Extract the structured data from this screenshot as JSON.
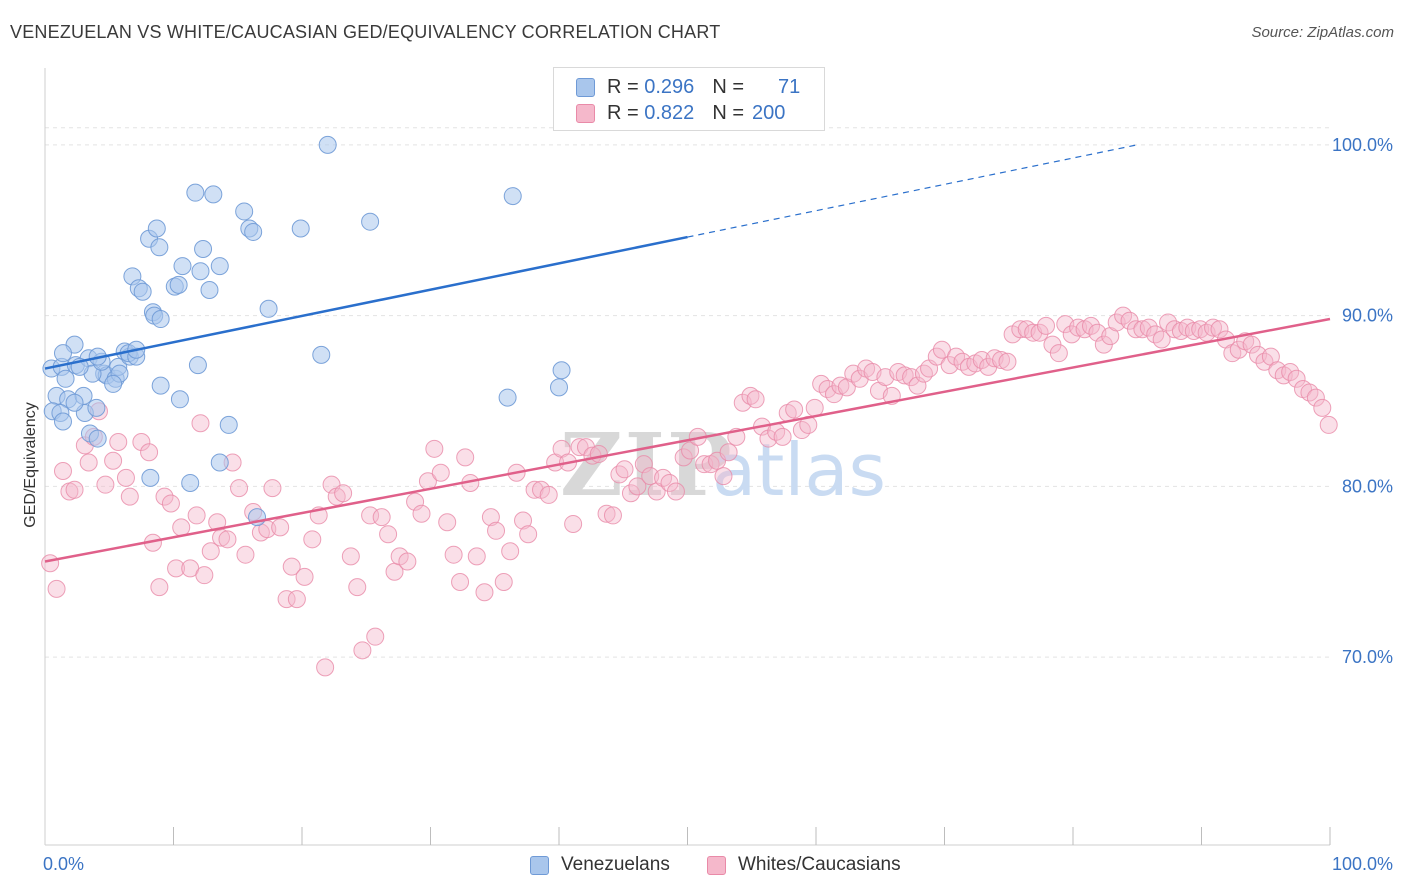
{
  "title": "VENEZUELAN VS WHITE/CAUCASIAN GED/EQUIVALENCY CORRELATION CHART",
  "source": "Source: ZipAtlas.com",
  "watermark": {
    "zip": "ZIP",
    "atlas": "atlas"
  },
  "colors": {
    "blue_fill": "#a9c6ec",
    "blue_stroke": "#6f9ad6",
    "blue_line": "#2a6fcc",
    "pink_fill": "#f5b8cb",
    "pink_stroke": "#e98aa8",
    "pink_line": "#e0608a",
    "tick_text": "#3b74c4",
    "grid": "#e3e3e3"
  },
  "legend": {
    "rows": [
      {
        "r_label": "R = ",
        "r_value": "0.296",
        "n_label": "N = ",
        "n_value": "71"
      },
      {
        "r_label": "R = ",
        "r_value": "0.822",
        "n_label": "N = ",
        "n_value": "200"
      }
    ]
  },
  "bottom_legend": [
    "Venezuelans",
    "Whites/Caucasians"
  ],
  "chart_data": {
    "type": "scatter",
    "title": "VENEZUELAN VS WHITE/CAUCASIAN GED/EQUIVALENCY CORRELATION CHART",
    "xlabel": "",
    "ylabel": "GED/Equivalency",
    "xlim": [
      0,
      100
    ],
    "ylim": [
      59.0,
      104.5
    ],
    "x_tick_labels": [
      "0.0%",
      "100.0%"
    ],
    "y_ticks": [
      70,
      80,
      90,
      100
    ],
    "y_tick_labels": [
      "70.0%",
      "80.0%",
      "90.0%",
      "100.0%"
    ],
    "grid": true,
    "legend_position": "top-center",
    "series": [
      {
        "name": "Venezuelans",
        "R": 0.296,
        "N": 71,
        "trend": {
          "x0": 0,
          "y0": 86.9,
          "x1": 50,
          "y1": 94.6,
          "dashed_to_x": 85,
          "dashed_to_y": 100.0
        },
        "points": [
          [
            0.5,
            86.9
          ],
          [
            1.3,
            87.0
          ],
          [
            0.9,
            85.3
          ],
          [
            0.6,
            84.4
          ],
          [
            1.6,
            86.3
          ],
          [
            1.8,
            85.1
          ],
          [
            2.4,
            87.1
          ],
          [
            3.0,
            85.3
          ],
          [
            3.1,
            84.3
          ],
          [
            1.2,
            84.3
          ],
          [
            1.4,
            83.8
          ],
          [
            2.3,
            84.9
          ],
          [
            4.0,
            84.6
          ],
          [
            3.5,
            83.1
          ],
          [
            4.1,
            82.8
          ],
          [
            4.6,
            86.6
          ],
          [
            4.8,
            86.5
          ],
          [
            5.5,
            86.3
          ],
          [
            5.7,
            87.0
          ],
          [
            5.8,
            86.6
          ],
          [
            5.3,
            86.0
          ],
          [
            6.2,
            87.9
          ],
          [
            6.6,
            87.6
          ],
          [
            6.5,
            87.8
          ],
          [
            7.1,
            87.6
          ],
          [
            7.1,
            88.0
          ],
          [
            3.4,
            87.5
          ],
          [
            3.7,
            86.6
          ],
          [
            4.4,
            87.3
          ],
          [
            4.1,
            87.6
          ],
          [
            2.3,
            88.3
          ],
          [
            1.4,
            87.8
          ],
          [
            2.7,
            87.0
          ],
          [
            6.8,
            92.3
          ],
          [
            7.3,
            91.6
          ],
          [
            7.6,
            91.4
          ],
          [
            8.1,
            94.5
          ],
          [
            8.4,
            90.2
          ],
          [
            8.5,
            90.0
          ],
          [
            8.7,
            95.1
          ],
          [
            8.9,
            94.0
          ],
          [
            9.0,
            89.8
          ],
          [
            10.1,
            91.7
          ],
          [
            10.4,
            91.8
          ],
          [
            10.7,
            92.9
          ],
          [
            11.7,
            97.2
          ],
          [
            12.1,
            92.6
          ],
          [
            12.3,
            93.9
          ],
          [
            12.8,
            91.5
          ],
          [
            13.1,
            97.1
          ],
          [
            13.6,
            92.9
          ],
          [
            15.5,
            96.1
          ],
          [
            15.9,
            95.1
          ],
          [
            16.2,
            94.9
          ],
          [
            17.4,
            90.4
          ],
          [
            19.9,
            95.1
          ],
          [
            21.5,
            87.7
          ],
          [
            22.0,
            100.0
          ],
          [
            25.3,
            95.5
          ],
          [
            36.4,
            97.0
          ],
          [
            11.9,
            87.1
          ],
          [
            9.0,
            85.9
          ],
          [
            10.5,
            85.1
          ],
          [
            13.6,
            81.4
          ],
          [
            14.3,
            83.6
          ],
          [
            8.2,
            80.5
          ],
          [
            11.3,
            80.2
          ],
          [
            16.5,
            78.2
          ],
          [
            36.0,
            85.2
          ],
          [
            40.2,
            86.8
          ],
          [
            40.0,
            85.8
          ]
        ]
      },
      {
        "name": "Whites/Caucasians",
        "R": 0.822,
        "N": 200,
        "trend": {
          "x0": 0,
          "y0": 75.6,
          "x1": 100,
          "y1": 89.8
        },
        "points": [
          [
            0.4,
            75.5
          ],
          [
            0.9,
            74.0
          ],
          [
            1.4,
            80.9
          ],
          [
            1.9,
            79.7
          ],
          [
            2.3,
            79.8
          ],
          [
            3.1,
            82.4
          ],
          [
            3.4,
            81.4
          ],
          [
            3.8,
            82.9
          ],
          [
            4.2,
            84.4
          ],
          [
            4.7,
            80.1
          ],
          [
            5.3,
            81.5
          ],
          [
            5.7,
            82.6
          ],
          [
            6.3,
            80.5
          ],
          [
            6.6,
            79.4
          ],
          [
            7.5,
            82.6
          ],
          [
            8.1,
            82.0
          ],
          [
            8.4,
            76.7
          ],
          [
            8.9,
            74.1
          ],
          [
            9.3,
            79.4
          ],
          [
            9.8,
            79.0
          ],
          [
            10.2,
            75.2
          ],
          [
            10.6,
            77.6
          ],
          [
            11.3,
            75.2
          ],
          [
            11.8,
            78.3
          ],
          [
            12.1,
            83.7
          ],
          [
            12.4,
            74.8
          ],
          [
            12.9,
            76.2
          ],
          [
            13.4,
            77.9
          ],
          [
            13.7,
            77.0
          ],
          [
            14.2,
            76.9
          ],
          [
            14.6,
            81.4
          ],
          [
            15.1,
            79.9
          ],
          [
            15.6,
            76.0
          ],
          [
            16.2,
            78.5
          ],
          [
            16.8,
            77.3
          ],
          [
            17.3,
            77.5
          ],
          [
            17.7,
            79.9
          ],
          [
            18.3,
            77.6
          ],
          [
            18.8,
            73.4
          ],
          [
            19.2,
            75.3
          ],
          [
            19.6,
            73.4
          ],
          [
            20.2,
            74.7
          ],
          [
            20.8,
            76.9
          ],
          [
            21.3,
            78.3
          ],
          [
            21.8,
            69.4
          ],
          [
            22.3,
            80.1
          ],
          [
            22.7,
            79.4
          ],
          [
            23.2,
            79.6
          ],
          [
            23.8,
            75.9
          ],
          [
            24.3,
            74.1
          ],
          [
            24.7,
            70.4
          ],
          [
            25.3,
            78.3
          ],
          [
            25.7,
            71.2
          ],
          [
            26.2,
            78.2
          ],
          [
            26.7,
            77.2
          ],
          [
            27.2,
            75.0
          ],
          [
            27.6,
            75.9
          ],
          [
            28.2,
            75.6
          ],
          [
            28.8,
            79.1
          ],
          [
            29.3,
            78.4
          ],
          [
            29.8,
            80.3
          ],
          [
            30.3,
            82.2
          ],
          [
            30.8,
            80.8
          ],
          [
            31.3,
            77.9
          ],
          [
            31.8,
            76.0
          ],
          [
            32.3,
            74.4
          ],
          [
            32.7,
            81.7
          ],
          [
            33.1,
            80.2
          ],
          [
            33.6,
            75.9
          ],
          [
            34.2,
            73.8
          ],
          [
            34.7,
            78.2
          ],
          [
            35.1,
            77.4
          ],
          [
            35.7,
            74.4
          ],
          [
            36.2,
            76.2
          ],
          [
            36.7,
            80.8
          ],
          [
            37.2,
            78.0
          ],
          [
            37.6,
            77.2
          ],
          [
            38.1,
            79.8
          ],
          [
            38.6,
            79.8
          ],
          [
            39.2,
            79.5
          ],
          [
            39.7,
            81.4
          ],
          [
            40.2,
            82.2
          ],
          [
            40.7,
            81.4
          ],
          [
            41.1,
            77.8
          ],
          [
            41.6,
            82.3
          ],
          [
            42.1,
            82.3
          ],
          [
            42.6,
            81.8
          ],
          [
            43.1,
            81.9
          ],
          [
            43.7,
            78.4
          ],
          [
            44.2,
            78.3
          ],
          [
            44.7,
            80.7
          ],
          [
            45.1,
            81.0
          ],
          [
            45.6,
            79.6
          ],
          [
            46.1,
            80.0
          ],
          [
            46.6,
            81.3
          ],
          [
            47.1,
            80.6
          ],
          [
            47.6,
            79.7
          ],
          [
            48.1,
            80.5
          ],
          [
            48.6,
            80.2
          ],
          [
            49.1,
            79.7
          ],
          [
            49.7,
            81.7
          ],
          [
            50.2,
            82.1
          ],
          [
            50.8,
            82.9
          ],
          [
            51.3,
            81.3
          ],
          [
            51.8,
            81.3
          ],
          [
            52.3,
            81.5
          ],
          [
            52.8,
            80.6
          ],
          [
            53.2,
            82.0
          ],
          [
            53.8,
            82.9
          ],
          [
            54.3,
            84.9
          ],
          [
            54.9,
            85.3
          ],
          [
            55.3,
            85.1
          ],
          [
            55.8,
            83.5
          ],
          [
            56.3,
            82.8
          ],
          [
            56.9,
            83.2
          ],
          [
            57.4,
            82.9
          ],
          [
            57.8,
            84.3
          ],
          [
            58.3,
            84.5
          ],
          [
            58.9,
            83.3
          ],
          [
            59.4,
            83.6
          ],
          [
            59.9,
            84.6
          ],
          [
            60.4,
            86.0
          ],
          [
            60.9,
            85.7
          ],
          [
            61.4,
            85.4
          ],
          [
            61.9,
            85.9
          ],
          [
            62.4,
            85.8
          ],
          [
            62.9,
            86.6
          ],
          [
            63.4,
            86.3
          ],
          [
            63.9,
            86.9
          ],
          [
            64.4,
            86.7
          ],
          [
            64.9,
            85.6
          ],
          [
            65.4,
            86.4
          ],
          [
            65.9,
            85.3
          ],
          [
            66.4,
            86.7
          ],
          [
            66.9,
            86.5
          ],
          [
            67.4,
            86.4
          ],
          [
            67.9,
            85.9
          ],
          [
            68.4,
            86.6
          ],
          [
            68.8,
            86.9
          ],
          [
            69.4,
            87.6
          ],
          [
            69.8,
            88.0
          ],
          [
            70.4,
            87.1
          ],
          [
            70.9,
            87.6
          ],
          [
            71.4,
            87.3
          ],
          [
            71.9,
            87.0
          ],
          [
            72.4,
            87.2
          ],
          [
            72.9,
            87.4
          ],
          [
            73.4,
            87.0
          ],
          [
            73.9,
            87.5
          ],
          [
            74.4,
            87.4
          ],
          [
            74.9,
            87.3
          ],
          [
            75.3,
            88.9
          ],
          [
            75.9,
            89.2
          ],
          [
            76.4,
            89.2
          ],
          [
            76.9,
            89.0
          ],
          [
            77.4,
            89.0
          ],
          [
            77.9,
            89.4
          ],
          [
            78.4,
            88.3
          ],
          [
            78.9,
            87.8
          ],
          [
            79.4,
            89.5
          ],
          [
            79.9,
            88.9
          ],
          [
            80.4,
            89.3
          ],
          [
            80.9,
            89.2
          ],
          [
            81.4,
            89.4
          ],
          [
            81.9,
            89.0
          ],
          [
            82.4,
            88.3
          ],
          [
            82.9,
            88.8
          ],
          [
            83.4,
            89.6
          ],
          [
            83.9,
            90.0
          ],
          [
            84.4,
            89.7
          ],
          [
            84.9,
            89.2
          ],
          [
            85.4,
            89.2
          ],
          [
            85.9,
            89.3
          ],
          [
            86.4,
            88.9
          ],
          [
            86.9,
            88.6
          ],
          [
            87.4,
            89.6
          ],
          [
            87.9,
            89.2
          ],
          [
            88.4,
            89.1
          ],
          [
            88.9,
            89.3
          ],
          [
            89.4,
            89.1
          ],
          [
            89.9,
            89.2
          ],
          [
            90.4,
            89.0
          ],
          [
            90.9,
            89.3
          ],
          [
            91.4,
            89.2
          ],
          [
            91.9,
            88.6
          ],
          [
            92.4,
            87.8
          ],
          [
            92.9,
            88.0
          ],
          [
            93.4,
            88.5
          ],
          [
            93.9,
            88.3
          ],
          [
            94.4,
            87.7
          ],
          [
            94.9,
            87.3
          ],
          [
            95.4,
            87.6
          ],
          [
            95.9,
            86.8
          ],
          [
            96.4,
            86.5
          ],
          [
            96.9,
            86.7
          ],
          [
            97.4,
            86.3
          ],
          [
            97.9,
            85.7
          ],
          [
            98.4,
            85.5
          ],
          [
            98.9,
            85.2
          ],
          [
            99.4,
            84.6
          ],
          [
            99.9,
            83.6
          ]
        ]
      }
    ]
  }
}
